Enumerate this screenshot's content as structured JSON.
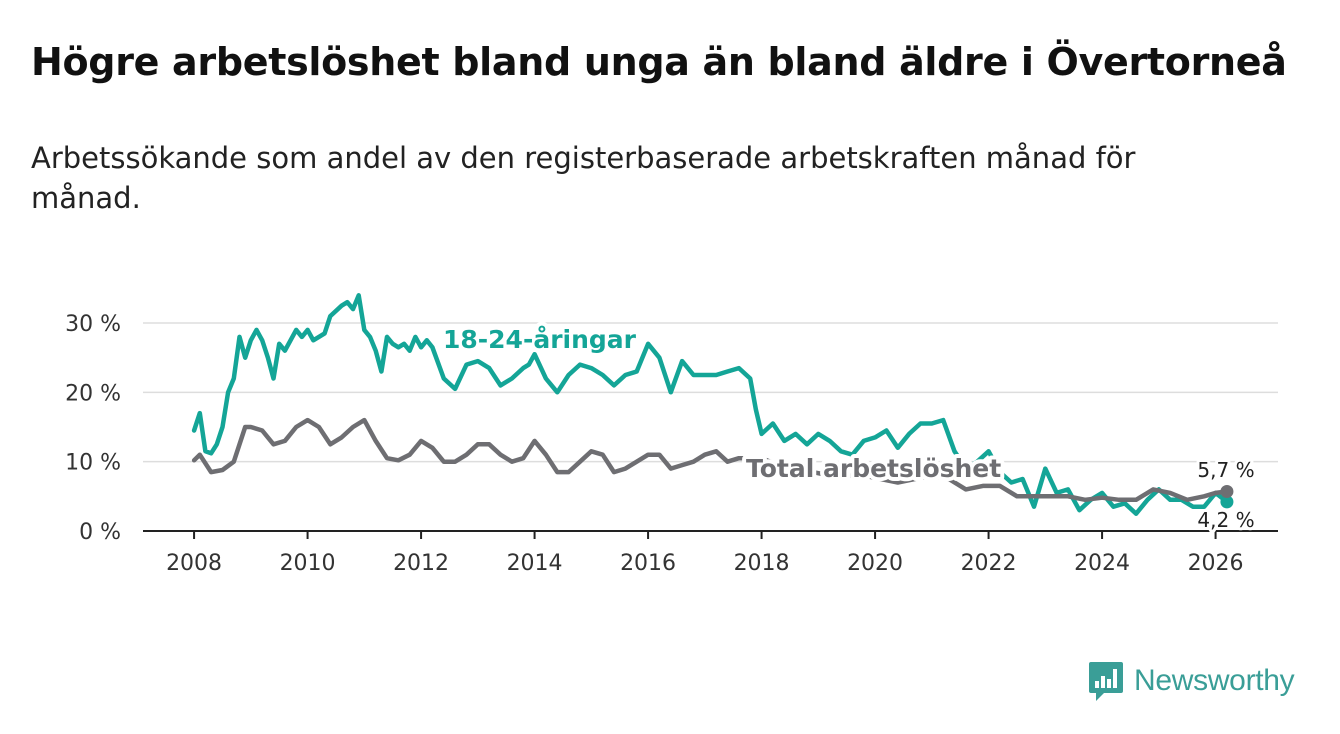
{
  "title": "Högre arbetslöshet bland unga än bland äldre i Övertorneå",
  "subtitle": "Arbetssökande som andel av den registerbaserade arbetskraften månad för månad.",
  "brand": "Newsworthy",
  "colors": {
    "youth": "#14a597",
    "total": "#6e6e72",
    "grid": "#dddddd",
    "axis": "#222222",
    "brand": "#3a9e97"
  },
  "chart_data": {
    "type": "line",
    "ylim": [
      0,
      30
    ],
    "yticks": [
      0,
      10,
      20,
      30
    ],
    "ytick_labels": [
      "0 %",
      "10 %",
      "20 %",
      "30 %"
    ],
    "xlim": [
      2007.1,
      2027.1
    ],
    "xticks": [
      2008,
      2010,
      2012,
      2014,
      2016,
      2018,
      2020,
      2022,
      2024,
      2026
    ],
    "xtick_labels": [
      "2008",
      "2010",
      "2012",
      "2014",
      "2016",
      "2018",
      "2020",
      "2022",
      "2024",
      "2026"
    ],
    "series": [
      {
        "key": "youth",
        "name": "18-24-åringar",
        "end_label": "4,2 %",
        "x": [
          2008.0,
          2008.1,
          2008.2,
          2008.3,
          2008.4,
          2008.5,
          2008.6,
          2008.7,
          2008.8,
          2008.9,
          2009.0,
          2009.1,
          2009.2,
          2009.3,
          2009.4,
          2009.5,
          2009.6,
          2009.8,
          2009.9,
          2010.0,
          2010.1,
          2010.2,
          2010.3,
          2010.4,
          2010.6,
          2010.7,
          2010.8,
          2010.9,
          2011.0,
          2011.1,
          2011.2,
          2011.3,
          2011.4,
          2011.5,
          2011.6,
          2011.7,
          2011.8,
          2011.9,
          2012.0,
          2012.1,
          2012.2,
          2012.4,
          2012.6,
          2012.8,
          2013.0,
          2013.2,
          2013.4,
          2013.6,
          2013.8,
          2013.9,
          2014.0,
          2014.2,
          2014.4,
          2014.6,
          2014.8,
          2015.0,
          2015.2,
          2015.4,
          2015.6,
          2015.8,
          2016.0,
          2016.2,
          2016.4,
          2016.6,
          2016.8,
          2017.0,
          2017.2,
          2017.4,
          2017.6,
          2017.8,
          2017.9,
          2018.0,
          2018.2,
          2018.4,
          2018.6,
          2018.8,
          2019.0,
          2019.2,
          2019.4,
          2019.6,
          2019.8,
          2020.0,
          2020.2,
          2020.4,
          2020.6,
          2020.8,
          2021.0,
          2021.2,
          2021.4,
          2021.6,
          2021.8,
          2022.0,
          2022.2,
          2022.4,
          2022.6,
          2022.8,
          2023.0,
          2023.2,
          2023.4,
          2023.6,
          2023.8,
          2024.0,
          2024.2,
          2024.4,
          2024.6,
          2024.8,
          2025.0,
          2025.2,
          2025.4,
          2025.6,
          2025.8,
          2026.0,
          2026.2
        ],
        "values": [
          14.5,
          17,
          11.5,
          11.2,
          12.5,
          15,
          20,
          22,
          28,
          25,
          27.5,
          29,
          27.5,
          25,
          22,
          27,
          26,
          29,
          28,
          29,
          27.5,
          28,
          28.5,
          31,
          32.5,
          33,
          32,
          34,
          29,
          28,
          26,
          23,
          28,
          27,
          26.5,
          27,
          26,
          28,
          26.5,
          27.5,
          26.5,
          22,
          20.5,
          24,
          24.5,
          23.5,
          21,
          22,
          23.5,
          24,
          25.5,
          22,
          20,
          22.5,
          24,
          23.5,
          22.5,
          21,
          22.5,
          23,
          27,
          25,
          20,
          24.5,
          22.5,
          22.5,
          22.5,
          23,
          23.5,
          22,
          17.5,
          14,
          15.5,
          13,
          14,
          12.5,
          14,
          13,
          11.5,
          11,
          13,
          13.5,
          14.5,
          12,
          14,
          15.5,
          15.5,
          16,
          11.5,
          9,
          10,
          11.5,
          8.5,
          7,
          7.5,
          3.5,
          9,
          5.5,
          6,
          3,
          4.5,
          5.5,
          3.5,
          4,
          2.5,
          4.5,
          6,
          4.5,
          4.5,
          3.5,
          3.5,
          5.5,
          4.2
        ]
      },
      {
        "key": "total",
        "name": "Total arbetslöshet",
        "end_label": "5,7 %",
        "x": [
          2008.0,
          2008.1,
          2008.3,
          2008.5,
          2008.7,
          2008.9,
          2009.0,
          2009.2,
          2009.4,
          2009.6,
          2009.8,
          2010.0,
          2010.2,
          2010.4,
          2010.6,
          2010.8,
          2011.0,
          2011.2,
          2011.4,
          2011.6,
          2011.8,
          2012.0,
          2012.2,
          2012.4,
          2012.6,
          2012.8,
          2013.0,
          2013.2,
          2013.4,
          2013.6,
          2013.8,
          2014.0,
          2014.2,
          2014.4,
          2014.6,
          2014.8,
          2015.0,
          2015.2,
          2015.4,
          2015.6,
          2015.8,
          2016.0,
          2016.2,
          2016.4,
          2016.6,
          2016.8,
          2017.0,
          2017.2,
          2017.4,
          2017.6,
          2017.8,
          2018.0,
          2018.3,
          2018.6,
          2018.9,
          2019.2,
          2019.5,
          2019.8,
          2020.1,
          2020.4,
          2020.7,
          2021.0,
          2021.3,
          2021.6,
          2021.9,
          2022.2,
          2022.5,
          2022.8,
          2023.1,
          2023.4,
          2023.7,
          2024.0,
          2024.3,
          2024.6,
          2024.9,
          2025.2,
          2025.5,
          2025.8,
          2026.0,
          2026.2
        ],
        "values": [
          10.2,
          11,
          8.5,
          8.8,
          10,
          15,
          15,
          14.5,
          12.5,
          13,
          15,
          16,
          15,
          12.5,
          13.5,
          15,
          16,
          13,
          10.5,
          10.2,
          11,
          13,
          12,
          10,
          10,
          11,
          12.5,
          12.5,
          11,
          10,
          10.5,
          13,
          11,
          8.5,
          8.5,
          10,
          11.5,
          11,
          8.5,
          9,
          10,
          11,
          11,
          9,
          9.5,
          10,
          11,
          11.5,
          10,
          10.5,
          10.5,
          10.5,
          9.5,
          9,
          8.5,
          8,
          8,
          8,
          7.5,
          7,
          7.5,
          8,
          7.5,
          6,
          6.5,
          6.5,
          5,
          5,
          5,
          5,
          4.5,
          4.8,
          4.5,
          4.5,
          6,
          5.5,
          4.5,
          5,
          5.5,
          5.7
        ]
      }
    ]
  }
}
